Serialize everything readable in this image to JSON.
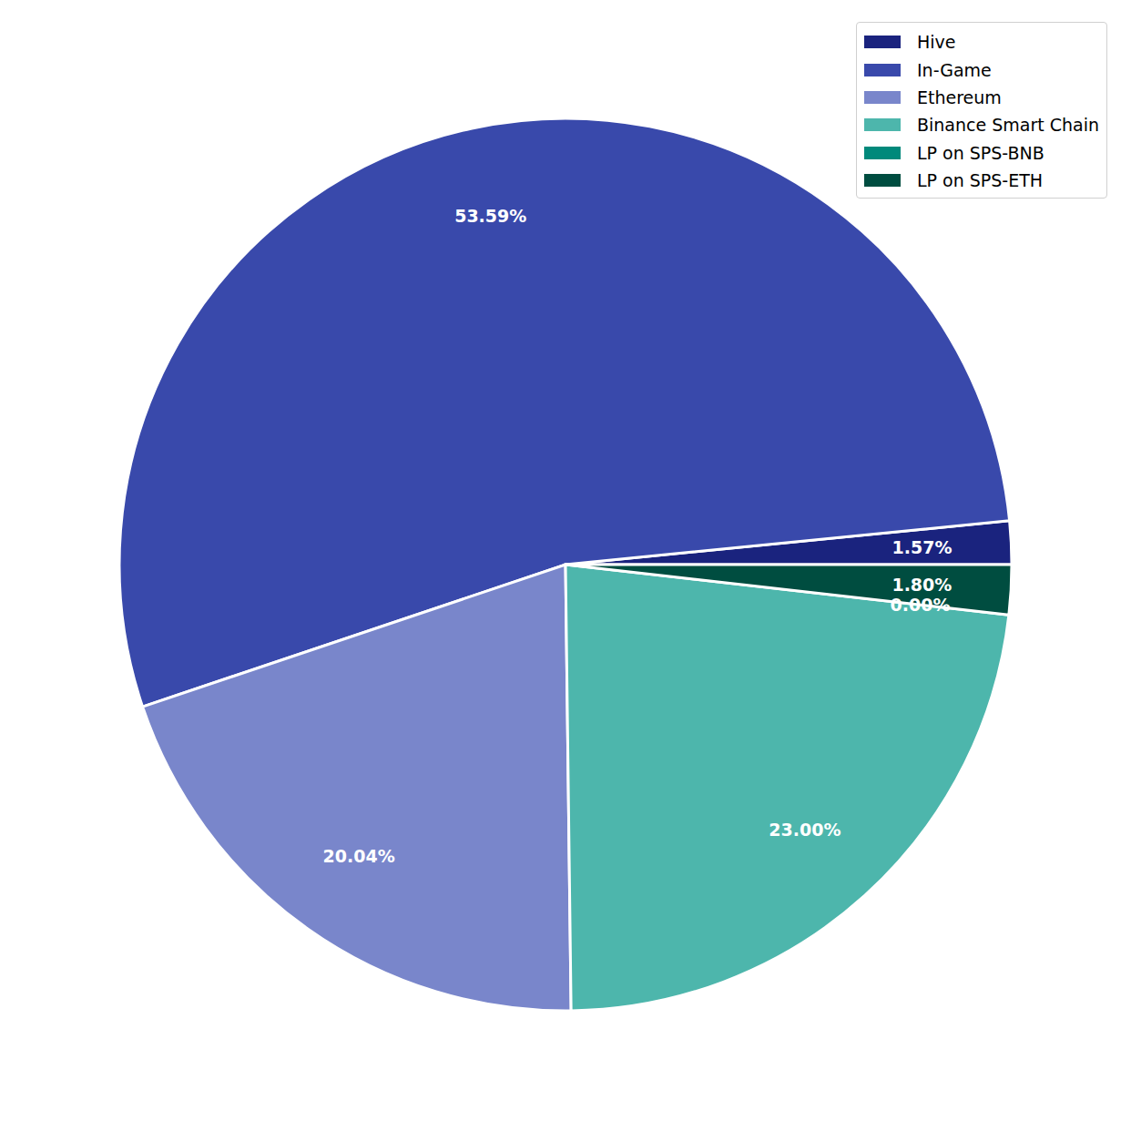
{
  "chart_data": {
    "type": "pie",
    "categories": [
      "Hive",
      "In-Game",
      "Ethereum",
      "Binance Smart Chain",
      "LP on SPS-BNB",
      "LP on SPS-ETH"
    ],
    "values": [
      1.57,
      53.59,
      20.04,
      23.0,
      0.0,
      1.8
    ],
    "value_labels": [
      "1.57%",
      "53.59%",
      "20.04%",
      "23.00%",
      "0.00%",
      "1.80%"
    ],
    "colors": [
      "#1a237e",
      "#3949ab",
      "#7986cb",
      "#4db6ac",
      "#00897b",
      "#004d40"
    ],
    "data_labels": true,
    "legend": "upper right"
  }
}
